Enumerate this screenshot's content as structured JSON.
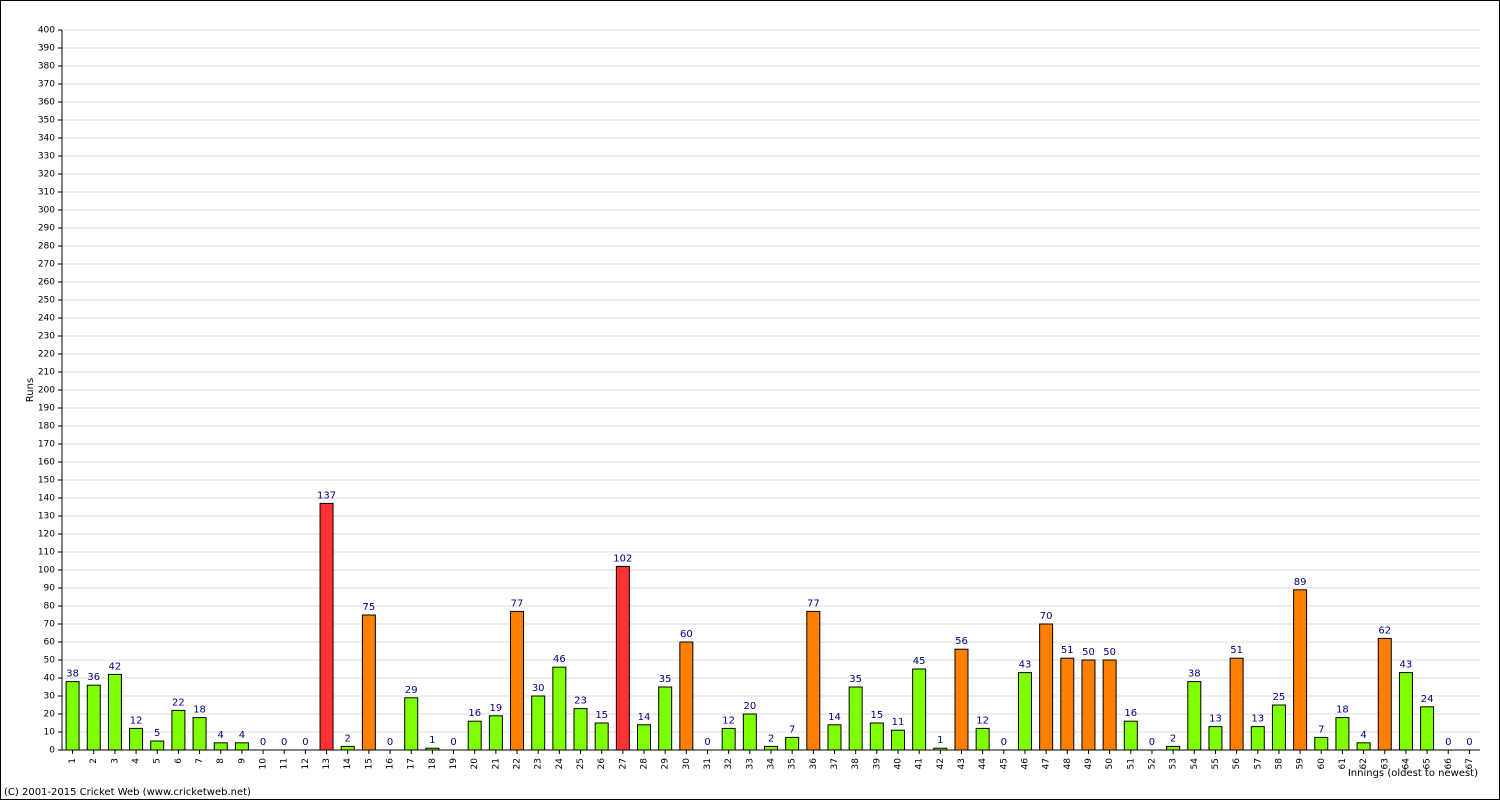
{
  "chart_data": {
    "type": "bar",
    "y_label": "Runs",
    "x_label": "Innings (oldest to newest)",
    "footer": "(C) 2001-2015 Cricket Web (www.cricketweb.net)",
    "categories": [
      "1",
      "2",
      "3",
      "4",
      "5",
      "6",
      "7",
      "8",
      "9",
      "10",
      "11",
      "12",
      "13",
      "14",
      "15",
      "16",
      "17",
      "18",
      "19",
      "20",
      "21",
      "22",
      "23",
      "24",
      "25",
      "26",
      "27",
      "28",
      "29",
      "30",
      "31",
      "32",
      "33",
      "34",
      "35",
      "36",
      "37",
      "38",
      "39",
      "40",
      "41",
      "42",
      "43",
      "44",
      "45",
      "46",
      "47",
      "48",
      "49",
      "50",
      "51",
      "52",
      "53",
      "54",
      "55",
      "56",
      "57",
      "58",
      "59",
      "60",
      "61",
      "62",
      "63",
      "64",
      "65",
      "66",
      "67"
    ],
    "values": [
      38,
      36,
      42,
      12,
      5,
      22,
      18,
      4,
      4,
      0,
      0,
      0,
      137,
      2,
      75,
      0,
      29,
      1,
      0,
      16,
      19,
      77,
      30,
      46,
      23,
      15,
      102,
      14,
      35,
      60,
      0,
      12,
      20,
      2,
      7,
      77,
      14,
      35,
      15,
      11,
      45,
      1,
      56,
      12,
      0,
      43,
      70,
      51,
      50,
      50,
      16,
      0,
      2,
      38,
      13,
      51,
      13,
      25,
      89,
      7,
      18,
      4,
      62,
      43,
      24,
      0,
      0
    ],
    "colors": [
      "#80ff00",
      "#80ff00",
      "#80ff00",
      "#80ff00",
      "#80ff00",
      "#80ff00",
      "#80ff00",
      "#80ff00",
      "#80ff00",
      "#80ff00",
      "#80ff00",
      "#80ff00",
      "#ff3333",
      "#80ff00",
      "#ff8000",
      "#80ff00",
      "#80ff00",
      "#80ff00",
      "#80ff00",
      "#80ff00",
      "#80ff00",
      "#ff8000",
      "#80ff00",
      "#80ff00",
      "#80ff00",
      "#80ff00",
      "#ff3333",
      "#80ff00",
      "#80ff00",
      "#ff8000",
      "#80ff00",
      "#80ff00",
      "#80ff00",
      "#80ff00",
      "#80ff00",
      "#ff8000",
      "#80ff00",
      "#80ff00",
      "#80ff00",
      "#80ff00",
      "#80ff00",
      "#80ff00",
      "#ff8000",
      "#80ff00",
      "#80ff00",
      "#80ff00",
      "#ff8000",
      "#ff8000",
      "#ff8000",
      "#ff8000",
      "#80ff00",
      "#80ff00",
      "#80ff00",
      "#80ff00",
      "#80ff00",
      "#ff8000",
      "#80ff00",
      "#80ff00",
      "#ff8000",
      "#80ff00",
      "#80ff00",
      "#80ff00",
      "#ff8000",
      "#80ff00",
      "#80ff00",
      "#80ff00",
      "#80ff00"
    ],
    "ylim": [
      0,
      400
    ],
    "yticks": [
      0,
      10,
      20,
      30,
      40,
      50,
      60,
      70,
      80,
      90,
      100,
      110,
      120,
      130,
      140,
      150,
      160,
      170,
      180,
      190,
      200,
      210,
      220,
      230,
      240,
      250,
      260,
      270,
      280,
      290,
      300,
      310,
      320,
      330,
      340,
      350,
      360,
      370,
      380,
      390,
      400
    ],
    "grid": true
  }
}
